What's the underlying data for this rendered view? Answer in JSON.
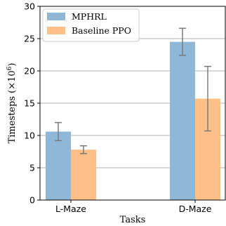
{
  "chart_data": {
    "type": "bar",
    "title": "",
    "xlabel": "Tasks",
    "ylabel_parts": {
      "base": "Timesteps (×10",
      "exp": "6",
      "close": ")"
    },
    "ylim": [
      0,
      30
    ],
    "yticks": [
      0,
      5,
      10,
      15,
      20,
      25,
      30
    ],
    "grid": "horizontal",
    "categories": [
      "L-Maze",
      "D-Maze"
    ],
    "series": [
      {
        "name": "MPHRL",
        "values": [
          10.6,
          24.5
        ],
        "errors": [
          1.4,
          2.1
        ],
        "color": "#8fb8d8"
      },
      {
        "name": "Baseline PPO",
        "values": [
          7.8,
          15.7
        ],
        "errors": [
          0.6,
          5.0
        ],
        "color": "#ffbf86"
      }
    ],
    "legend_position": "top-left",
    "errorbar_color": "#7a7a7a"
  }
}
